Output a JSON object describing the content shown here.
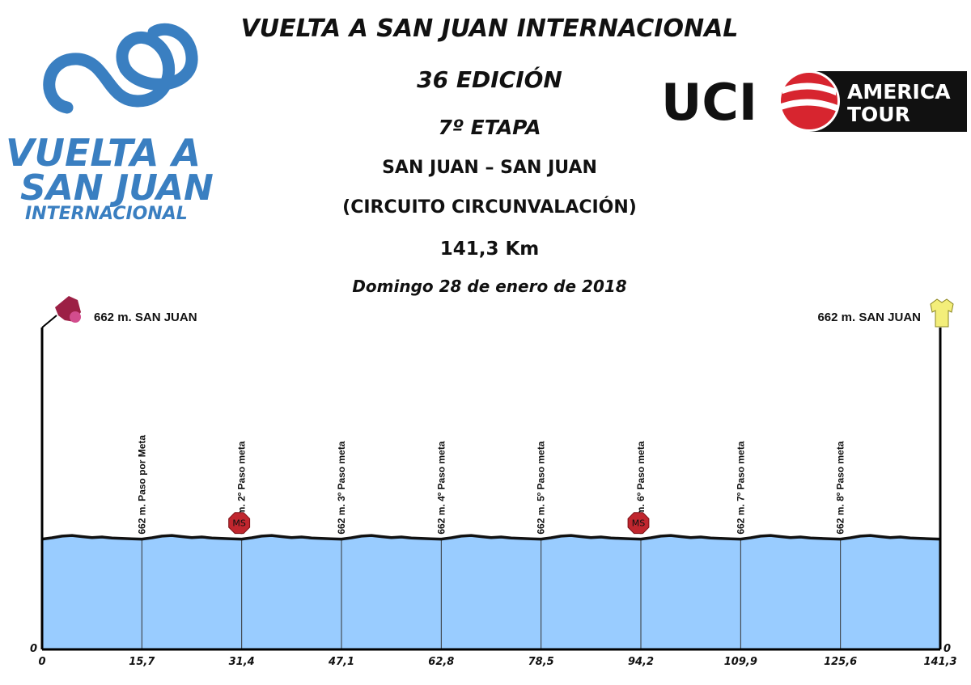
{
  "header": {
    "title": "VUELTA A SAN JUAN INTERNACIONAL",
    "edition": "36 EDICIÓN",
    "stage": "7º ETAPA",
    "route": "SAN JUAN – SAN JUAN",
    "circuit": "(CIRCUITO CIRCUNVALACIÓN)",
    "distance": "141,3 Km",
    "date": "Domingo 28 de enero de 2018"
  },
  "logos": {
    "left": {
      "line1": "VUELTA A",
      "line2": "SAN JUAN",
      "line3": "INTERNACIONAL",
      "color": "#3a7fc1"
    },
    "uci": {
      "brand": "UCI",
      "line1": "AMERICA",
      "line2": "TOUR",
      "accent": "#d7252f"
    }
  },
  "colors": {
    "fill": "#99ccff",
    "stroke": "#111111",
    "sprint": "#c0262e",
    "start_flag": "#9c2045",
    "finish_jersey": "#f3ee7a"
  },
  "chart_data": {
    "type": "area",
    "title": "",
    "xlabel": "",
    "ylabel": "",
    "x_ticks": [
      "0",
      "15,7",
      "31,4",
      "47,1",
      "62,8",
      "78,5",
      "94,2",
      "109,9",
      "125,6",
      "141,3"
    ],
    "y_tick": "0",
    "xlim": [
      0,
      141.3
    ],
    "ylim": [
      0,
      1500
    ],
    "lap": {
      "length_km": 15.7,
      "altitude_offsets_m": [
        0,
        8,
        18,
        22,
        15,
        9,
        13,
        7,
        4,
        2,
        0
      ]
    },
    "base_altitude_m": 662,
    "start_label": "662 m. SAN JUAN",
    "finish_label": "662 m. SAN JUAN",
    "markers": [
      {
        "km": 15.7,
        "label": "662  m. Paso por Meta",
        "sprint": false
      },
      {
        "km": 31.4,
        "label": "662  m. 2º Paso meta",
        "sprint": true
      },
      {
        "km": 47.1,
        "label": "662  m. 3º Paso meta",
        "sprint": false
      },
      {
        "km": 62.8,
        "label": "662  m. 4º Paso meta",
        "sprint": false
      },
      {
        "km": 78.5,
        "label": "662 m. 5º Paso meta",
        "sprint": false
      },
      {
        "km": 94.2,
        "label": "662 m. 6º Paso meta",
        "sprint": true
      },
      {
        "km": 109.9,
        "label": "662  m. 7º Paso meta",
        "sprint": false
      },
      {
        "km": 125.6,
        "label": "662  m. 8º Paso meta",
        "sprint": false
      }
    ],
    "sprint_badge": "MS"
  }
}
